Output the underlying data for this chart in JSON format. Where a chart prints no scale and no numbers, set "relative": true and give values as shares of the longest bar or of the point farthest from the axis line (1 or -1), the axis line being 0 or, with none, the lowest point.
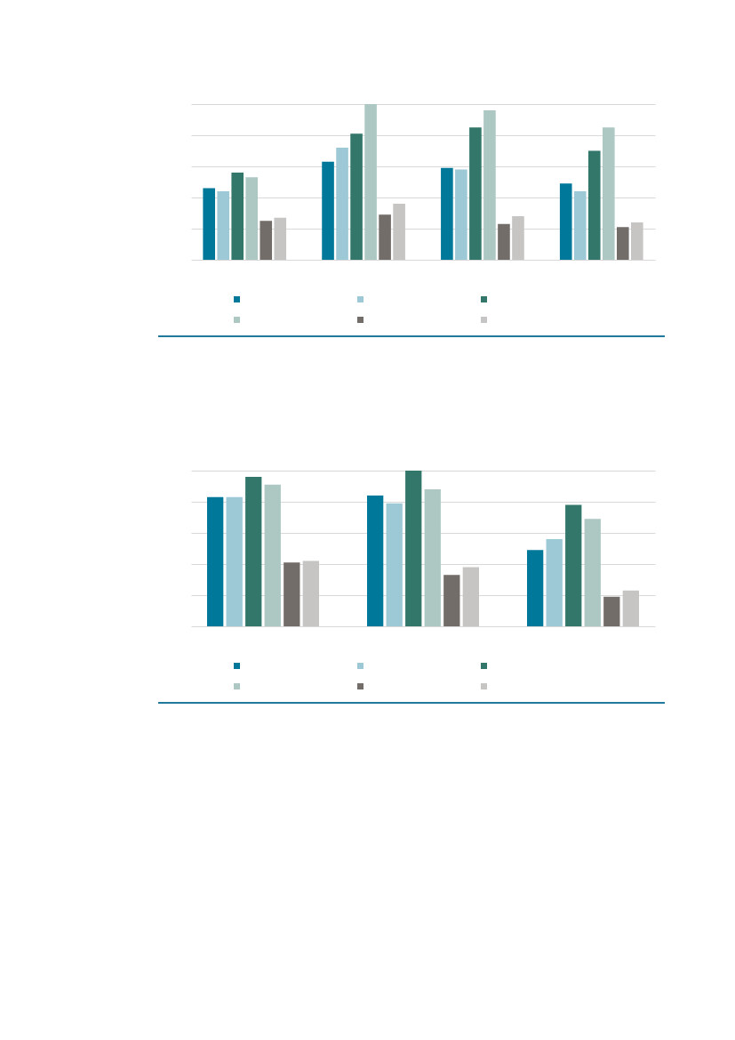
{
  "chart_data": [
    {
      "type": "bar",
      "relative": true,
      "categories": [
        null,
        null,
        null,
        null
      ],
      "grid": "y",
      "series": [
        {
          "color": "#00789a",
          "values": [
            0.46,
            0.63,
            0.59,
            0.49
          ]
        },
        {
          "color": "#9dc9d6",
          "values": [
            0.44,
            0.72,
            0.58,
            0.44
          ]
        },
        {
          "color": "#33776b",
          "values": [
            0.56,
            0.81,
            0.85,
            0.7
          ]
        },
        {
          "color": "#adc8c3",
          "values": [
            0.53,
            1.0,
            0.96,
            0.85
          ]
        },
        {
          "color": "#736d69",
          "values": [
            0.25,
            0.29,
            0.23,
            0.21
          ]
        },
        {
          "color": "#c6c5c3",
          "values": [
            0.27,
            0.36,
            0.28,
            0.24
          ]
        }
      ]
    },
    {
      "type": "bar",
      "relative": true,
      "categories": [
        null,
        null,
        null
      ],
      "grid": "y",
      "series": [
        {
          "color": "#00789a",
          "values": [
            0.83,
            0.84,
            0.49
          ]
        },
        {
          "color": "#9dc9d6",
          "values": [
            0.83,
            0.79,
            0.56
          ]
        },
        {
          "color": "#33776b",
          "values": [
            0.96,
            1.0,
            0.78
          ]
        },
        {
          "color": "#adc8c3",
          "values": [
            0.91,
            0.88,
            0.69
          ]
        },
        {
          "color": "#736d69",
          "values": [
            0.41,
            0.33,
            0.19
          ]
        },
        {
          "color": "#c6c5c3",
          "values": [
            0.42,
            0.38,
            0.23
          ]
        }
      ]
    }
  ]
}
